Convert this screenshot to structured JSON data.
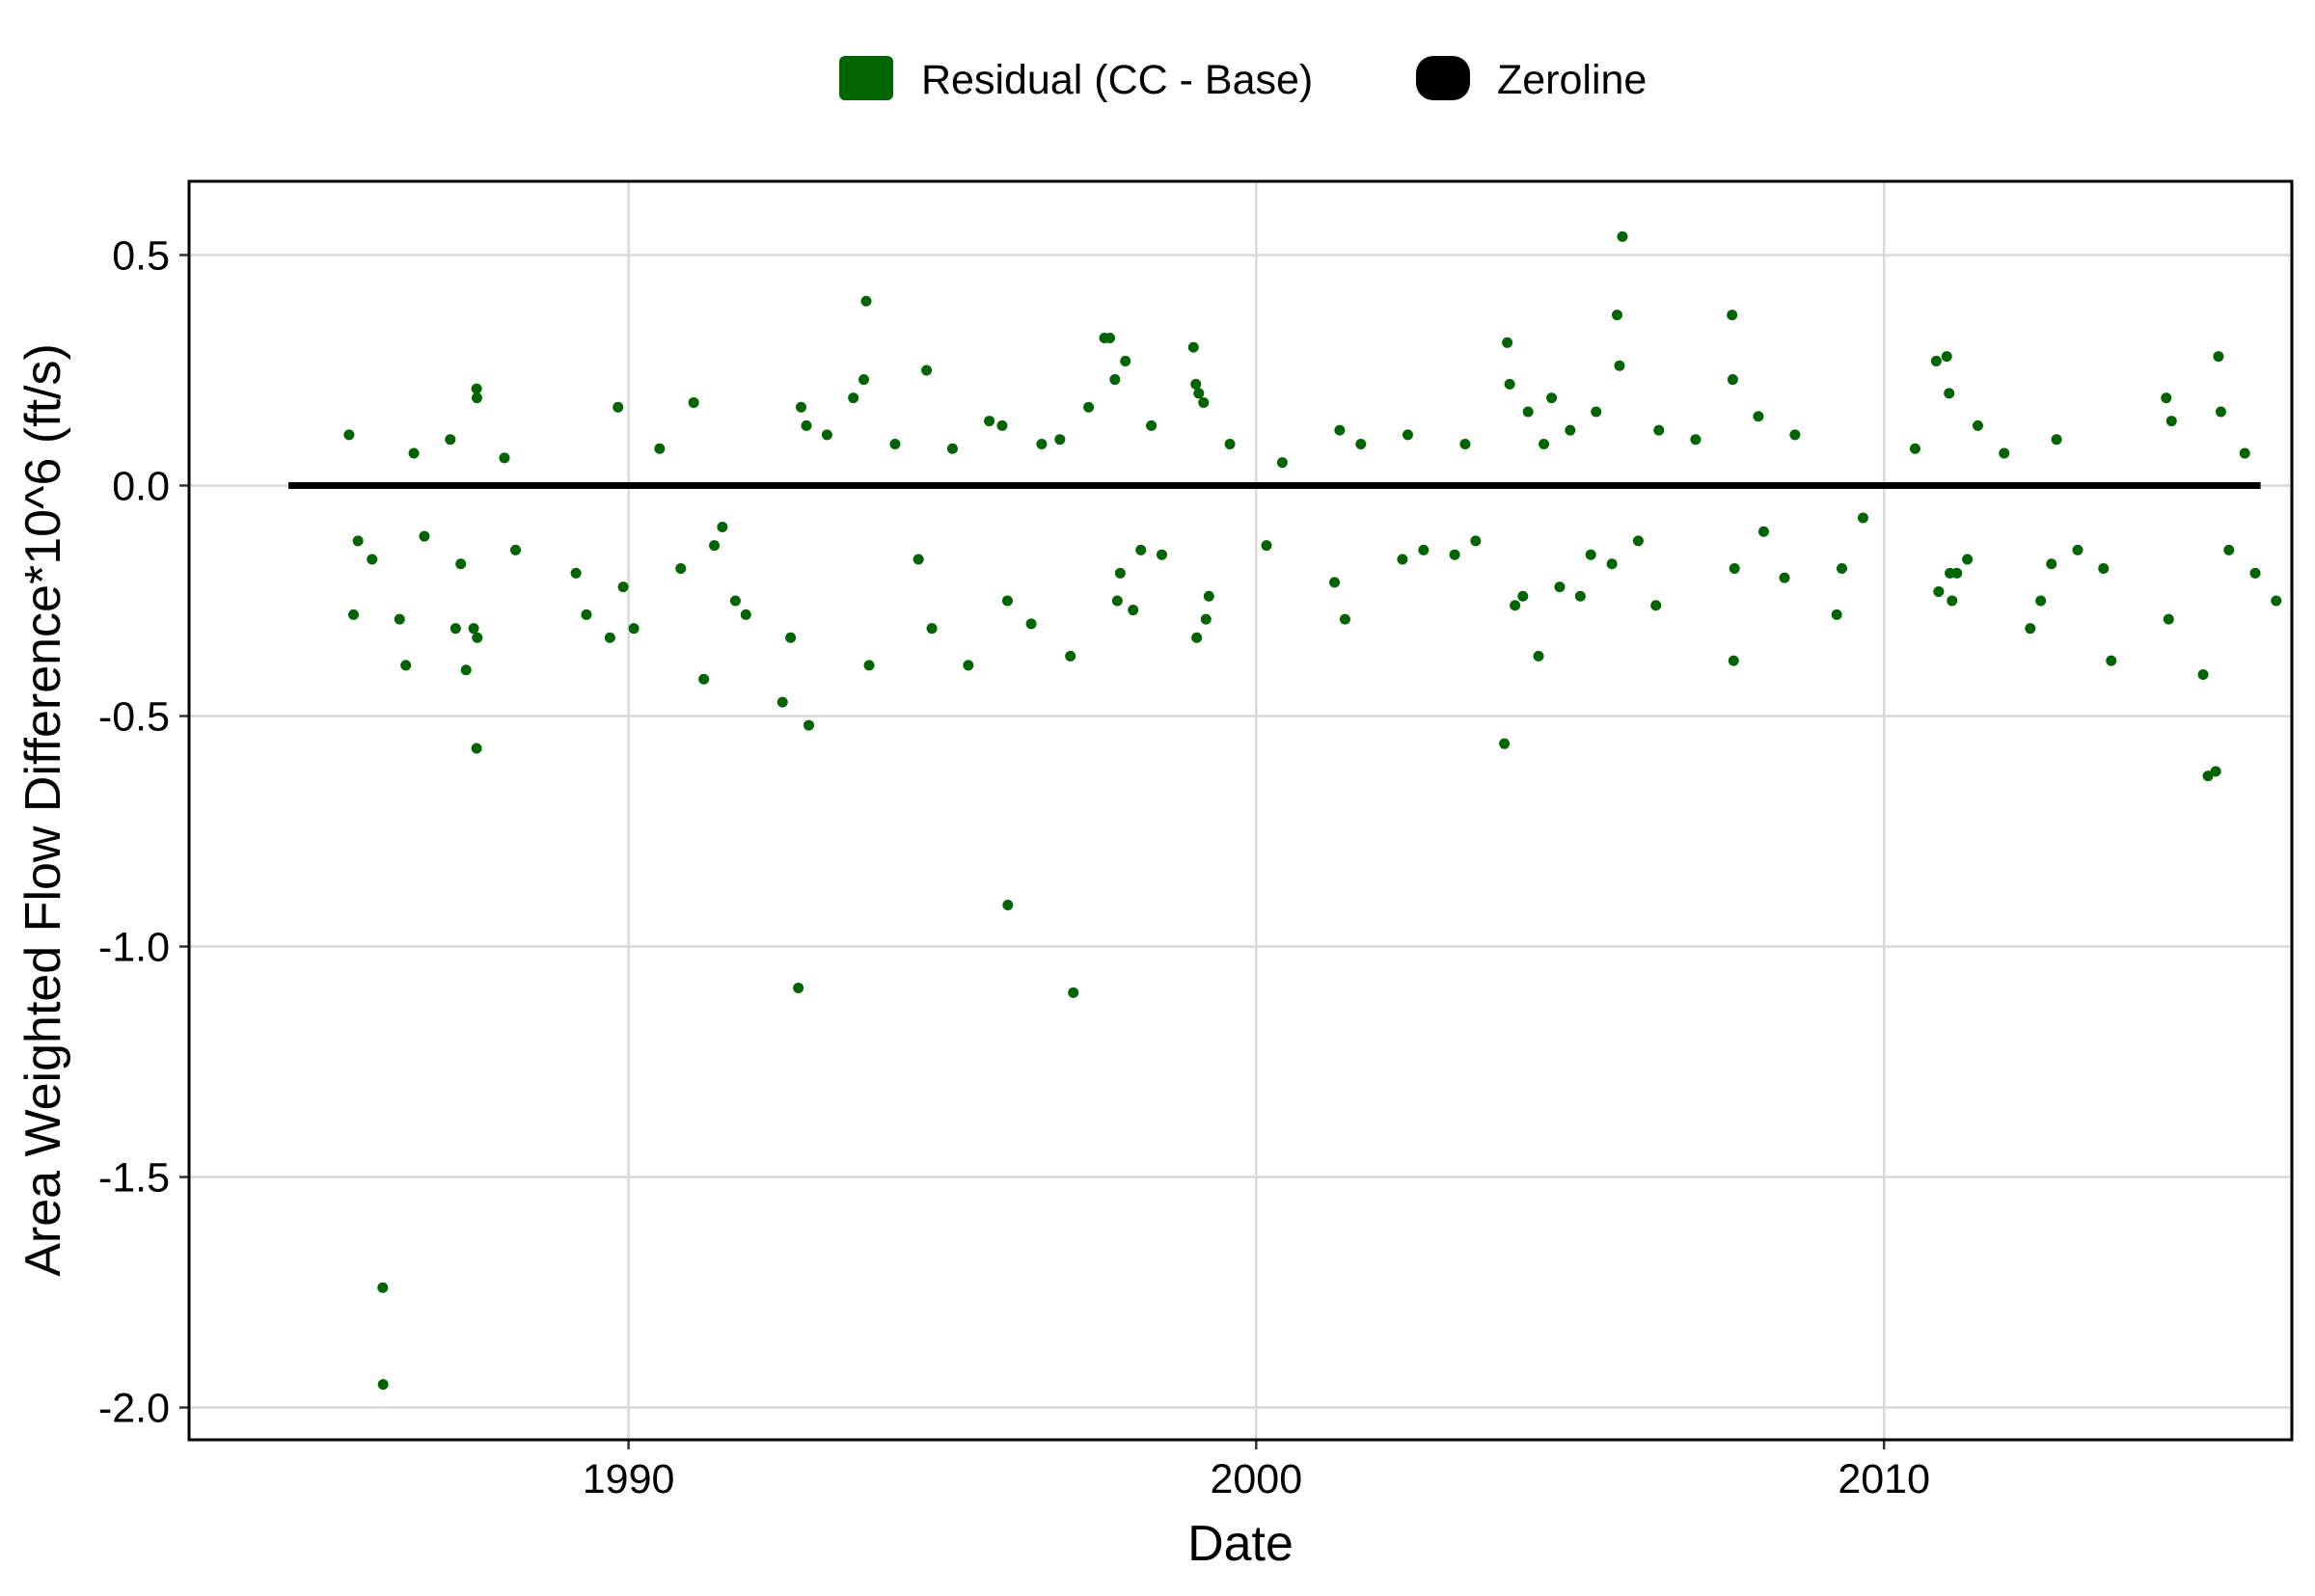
{
  "chart_data": {
    "type": "scatter",
    "title": "",
    "xlabel": "Date",
    "ylabel": "Area Weighted Flow Difference*10^6 (ft/s)",
    "x_domain": [
      "1983-01-01",
      "2016-07-01"
    ],
    "ylim": [
      -2.07,
      0.66
    ],
    "x_ticks": [
      {
        "date": "1990-01-01",
        "label": "1990"
      },
      {
        "date": "2000-01-01",
        "label": "2000"
      },
      {
        "date": "2010-01-01",
        "label": "2010"
      }
    ],
    "y_ticks": [
      {
        "value": 0.5,
        "label": "0.5"
      },
      {
        "value": 0.0,
        "label": "0.0"
      },
      {
        "value": -0.5,
        "label": "-0.5"
      },
      {
        "value": -1.0,
        "label": "-1.0"
      },
      {
        "value": -1.5,
        "label": "-1.5"
      },
      {
        "value": -2.0,
        "label": "-2.0"
      }
    ],
    "grid": true,
    "legend": {
      "position": "top",
      "entries": [
        {
          "label": "Residual (CC - Base)",
          "color": "#006400"
        },
        {
          "label": "Zeroline",
          "color": "#000000"
        }
      ]
    },
    "series": [
      {
        "name": "Residual (CC - Base)",
        "color": "#006400",
        "points": [
          [
            "1986-02-01",
            -1.74
          ],
          [
            "1986-02-03",
            -1.95
          ],
          [
            "1986-06-15",
            -0.39
          ],
          [
            "1985-08-15",
            -0.28
          ],
          [
            "1985-12-01",
            -0.16
          ],
          [
            "1985-07-20",
            0.11
          ],
          [
            "1985-09-10",
            -0.12
          ],
          [
            "1986-05-10",
            -0.29
          ],
          [
            "1986-08-01",
            0.07
          ],
          [
            "1986-10-01",
            -0.11
          ],
          [
            "1987-04-01",
            -0.31
          ],
          [
            "1987-06-01",
            -0.4
          ],
          [
            "1987-08-01",
            -0.57
          ],
          [
            "1987-07-15",
            -0.31
          ],
          [
            "1987-08-05",
            -0.33
          ],
          [
            "1987-08-01",
            0.21
          ],
          [
            "1987-08-03",
            0.19
          ],
          [
            "1987-05-01",
            -0.17
          ],
          [
            "1987-03-01",
            0.1
          ],
          [
            "1988-03-15",
            -0.14
          ],
          [
            "1988-01-10",
            0.06
          ],
          [
            "1989-03-01",
            -0.19
          ],
          [
            "1989-05-01",
            -0.28
          ],
          [
            "1989-09-15",
            -0.33
          ],
          [
            "1989-11-01",
            0.17
          ],
          [
            "1989-12-01",
            -0.22
          ],
          [
            "1990-02-01",
            -0.31
          ],
          [
            "1990-07-01",
            0.08
          ],
          [
            "1990-11-01",
            -0.18
          ],
          [
            "1991-01-15",
            0.18
          ],
          [
            "1991-03-15",
            -0.42
          ],
          [
            "1991-05-15",
            -0.13
          ],
          [
            "1991-07-01",
            -0.09
          ],
          [
            "1991-09-15",
            -0.25
          ],
          [
            "1991-11-15",
            -0.28
          ],
          [
            "1992-06-15",
            -0.47
          ],
          [
            "1992-08-01",
            -0.33
          ],
          [
            "1992-09-15",
            -1.09
          ],
          [
            "1992-11-15",
            -0.52
          ],
          [
            "1992-10-01",
            0.17
          ],
          [
            "1992-11-01",
            0.13
          ],
          [
            "1993-03-01",
            0.11
          ],
          [
            "1993-08-01",
            0.19
          ],
          [
            "1993-10-01",
            0.23
          ],
          [
            "1993-10-15",
            0.4
          ],
          [
            "1993-11-01",
            -0.39
          ],
          [
            "1994-04-01",
            0.09
          ],
          [
            "1994-08-15",
            -0.16
          ],
          [
            "1994-10-01",
            0.25
          ],
          [
            "1994-11-01",
            -0.31
          ],
          [
            "1995-03-01",
            0.08
          ],
          [
            "1995-06-01",
            -0.39
          ],
          [
            "1995-10-01",
            0.14
          ],
          [
            "1995-12-15",
            0.13
          ],
          [
            "1996-01-15",
            -0.25
          ],
          [
            "1996-01-17",
            -0.91
          ],
          [
            "1996-06-01",
            -0.3
          ],
          [
            "1996-08-01",
            0.09
          ],
          [
            "1997-02-01",
            -1.1
          ],
          [
            "1997-01-15",
            -0.37
          ],
          [
            "1996-11-15",
            0.1
          ],
          [
            "1997-05-01",
            0.17
          ],
          [
            "1997-08-01",
            0.32
          ],
          [
            "1997-09-01",
            0.32
          ],
          [
            "1997-10-01",
            0.23
          ],
          [
            "1997-10-15",
            -0.25
          ],
          [
            "1997-11-01",
            -0.19
          ],
          [
            "1997-12-01",
            0.27
          ],
          [
            "1998-01-15",
            -0.27
          ],
          [
            "1998-03-01",
            -0.14
          ],
          [
            "1998-05-01",
            0.13
          ],
          [
            "1998-07-01",
            -0.15
          ],
          [
            "1999-01-01",
            0.3
          ],
          [
            "1999-01-15",
            0.22
          ],
          [
            "1999-01-20",
            -0.33
          ],
          [
            "1999-02-01",
            0.2
          ],
          [
            "1999-03-01",
            0.18
          ],
          [
            "1999-03-15",
            -0.29
          ],
          [
            "1999-04-01",
            -0.24
          ],
          [
            "1999-08-01",
            0.09
          ],
          [
            "2000-03-01",
            -0.13
          ],
          [
            "2000-06-01",
            0.05
          ],
          [
            "2001-04-01",
            -0.21
          ],
          [
            "2001-06-01",
            -0.29
          ],
          [
            "2001-05-01",
            0.12
          ],
          [
            "2001-09-01",
            0.09
          ],
          [
            "2002-05-01",
            -0.16
          ],
          [
            "2002-06-01",
            0.11
          ],
          [
            "2002-09-01",
            -0.14
          ],
          [
            "2003-03-01",
            -0.15
          ],
          [
            "2003-05-01",
            0.09
          ],
          [
            "2003-07-01",
            -0.12
          ],
          [
            "2003-12-15",
            -0.56
          ],
          [
            "2004-01-01",
            0.31
          ],
          [
            "2004-01-15",
            0.22
          ],
          [
            "2004-02-15",
            -0.26
          ],
          [
            "2004-04-01",
            -0.24
          ],
          [
            "2004-05-01",
            0.16
          ],
          [
            "2004-07-01",
            -0.37
          ],
          [
            "2004-08-01",
            0.09
          ],
          [
            "2004-09-15",
            0.19
          ],
          [
            "2004-11-01",
            -0.22
          ],
          [
            "2005-01-01",
            0.12
          ],
          [
            "2005-03-01",
            -0.24
          ],
          [
            "2005-05-01",
            -0.15
          ],
          [
            "2005-06-01",
            0.16
          ],
          [
            "2005-09-01",
            -0.17
          ],
          [
            "2005-10-01",
            0.37
          ],
          [
            "2005-10-15",
            0.26
          ],
          [
            "2005-11-01",
            0.54
          ],
          [
            "2006-02-01",
            -0.12
          ],
          [
            "2006-05-15",
            -0.26
          ],
          [
            "2006-06-01",
            0.12
          ],
          [
            "2007-01-01",
            0.1
          ],
          [
            "2007-08-01",
            0.37
          ],
          [
            "2007-08-05",
            0.23
          ],
          [
            "2007-08-10",
            -0.38
          ],
          [
            "2007-08-15",
            -0.18
          ],
          [
            "2008-01-01",
            0.15
          ],
          [
            "2008-02-01",
            -0.1
          ],
          [
            "2008-06-01",
            -0.2
          ],
          [
            "2008-08-01",
            0.11
          ],
          [
            "2009-04-01",
            -0.28
          ],
          [
            "2009-05-01",
            -0.18
          ],
          [
            "2009-09-01",
            -0.07
          ],
          [
            "2010-07-01",
            0.08
          ],
          [
            "2010-11-01",
            0.27
          ],
          [
            "2010-11-15",
            -0.23
          ],
          [
            "2011-01-01",
            0.28
          ],
          [
            "2011-01-15",
            0.2
          ],
          [
            "2011-01-20",
            -0.19
          ],
          [
            "2011-02-01",
            -0.25
          ],
          [
            "2011-03-01",
            -0.19
          ],
          [
            "2011-05-01",
            -0.16
          ],
          [
            "2011-07-01",
            0.13
          ],
          [
            "2011-12-01",
            0.07
          ],
          [
            "2012-05-01",
            -0.31
          ],
          [
            "2012-07-01",
            -0.25
          ],
          [
            "2012-09-01",
            -0.17
          ],
          [
            "2012-10-01",
            0.1
          ],
          [
            "2013-02-01",
            -0.14
          ],
          [
            "2013-07-01",
            -0.18
          ],
          [
            "2013-08-15",
            -0.38
          ],
          [
            "2014-07-01",
            0.19
          ],
          [
            "2014-07-15",
            -0.29
          ],
          [
            "2014-08-01",
            0.14
          ],
          [
            "2015-02-01",
            -0.41
          ],
          [
            "2015-03-01",
            -0.63
          ],
          [
            "2015-04-15",
            -0.62
          ],
          [
            "2015-05-01",
            0.28
          ],
          [
            "2015-05-15",
            0.16
          ],
          [
            "2015-07-01",
            -0.14
          ],
          [
            "2015-10-01",
            0.07
          ],
          [
            "2015-12-01",
            -0.19
          ],
          [
            "2016-04-01",
            -0.25
          ]
        ]
      },
      {
        "name": "Zeroline",
        "color": "#000000",
        "x_range": [
          "1984-08-01",
          "2016-01-01"
        ],
        "y": 0
      }
    ]
  }
}
